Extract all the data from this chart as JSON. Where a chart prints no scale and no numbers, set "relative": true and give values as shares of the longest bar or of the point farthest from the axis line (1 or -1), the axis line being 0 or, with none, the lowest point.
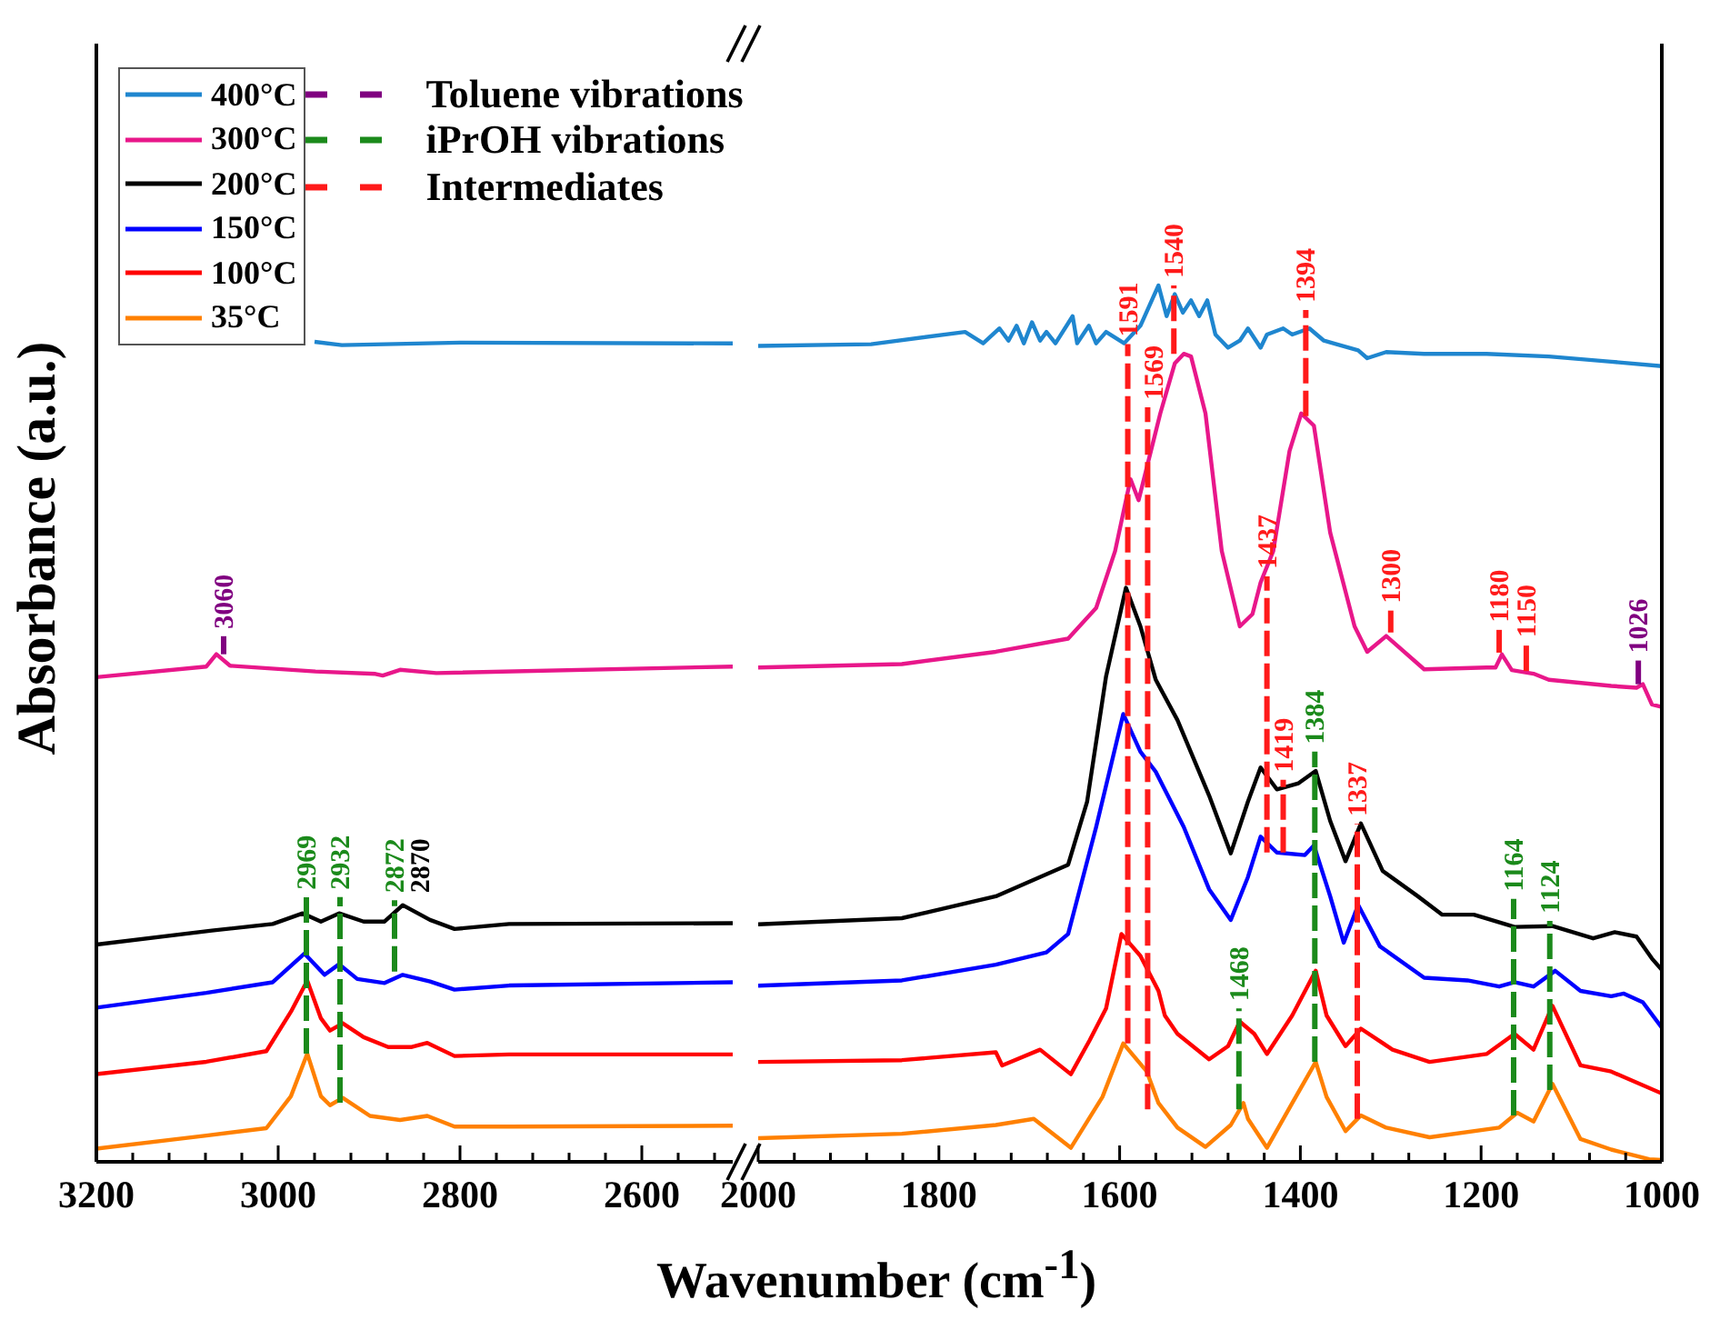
{
  "chart_data": [
    {
      "type": "line",
      "relative": true,
      "xlabel": "Wavenumber (cm$^{-1}$)",
      "ylabel": "Absorbance (a.u.)",
      "legend": "top left",
      "xlim": [
        3200,
        2500
      ],
      "xticks": [
        3200,
        {
          "value": 3160,
          "label": null
        },
        {
          "value": 3120,
          "label": null
        },
        {
          "value": 3080,
          "label": null
        },
        {
          "value": 3040,
          "label": null
        },
        3000,
        {
          "value": 2960,
          "label": null
        },
        {
          "value": 2920,
          "label": null
        },
        {
          "value": 2880,
          "label": null
        },
        {
          "value": 2840,
          "label": null
        },
        2800,
        {
          "value": 2760,
          "label": null
        },
        {
          "value": 2720,
          "label": null
        },
        {
          "value": 2680,
          "label": null
        },
        {
          "value": 2640,
          "label": null
        },
        2600,
        {
          "value": 2560,
          "label": null
        },
        {
          "value": 2520,
          "label": null
        }
      ],
      "series": [
        {
          "name": "400°C",
          "color": "#1f86cf",
          "x": [
            2960,
            2930,
            2800,
            2500
          ],
          "values": [
            1.0,
            0.996,
            0.999,
            0.998
          ]
        },
        {
          "name": "300°C",
          "color": "#e8178a",
          "x": [
            3200,
            3079,
            3068,
            3053,
            2959,
            2893,
            2885,
            2866,
            2826,
            2500
          ],
          "values": [
            0.591,
            0.604,
            0.619,
            0.605,
            0.598,
            0.595,
            0.593,
            0.6,
            0.596,
            0.604
          ]
        },
        {
          "name": "200°C",
          "color": "#000000",
          "x": [
            3200,
            3073,
            3006,
            2973,
            2953,
            2933,
            2906,
            2883,
            2863,
            2833,
            2806,
            2746,
            2500
          ],
          "values": [
            0.265,
            0.282,
            0.29,
            0.303,
            0.293,
            0.303,
            0.293,
            0.293,
            0.313,
            0.295,
            0.284,
            0.29,
            0.291
          ]
        },
        {
          "name": "150°C",
          "color": "#0000ff",
          "x": [
            3200,
            3079,
            3006,
            2971,
            2949,
            2933,
            2913,
            2883,
            2863,
            2833,
            2806,
            2746,
            2500
          ],
          "values": [
            0.188,
            0.206,
            0.219,
            0.254,
            0.228,
            0.241,
            0.223,
            0.218,
            0.228,
            0.22,
            0.21,
            0.215,
            0.219
          ]
        },
        {
          "name": "100°C",
          "color": "#ff0000",
          "x": [
            3200,
            3079,
            3013,
            2986,
            2968,
            2953,
            2943,
            2929,
            2906,
            2879,
            2853,
            2836,
            2806,
            2746,
            2500
          ],
          "values": [
            0.107,
            0.122,
            0.135,
            0.183,
            0.221,
            0.175,
            0.16,
            0.169,
            0.152,
            0.14,
            0.14,
            0.145,
            0.129,
            0.131,
            0.131
          ]
        },
        {
          "name": "35°C",
          "color": "#ff8000",
          "x": [
            3200,
            3079,
            3013,
            2986,
            2968,
            2953,
            2943,
            2929,
            2899,
            2866,
            2836,
            2806,
            2746,
            2500
          ],
          "values": [
            0.016,
            0.032,
            0.041,
            0.08,
            0.132,
            0.08,
            0.069,
            0.078,
            0.056,
            0.051,
            0.056,
            0.043,
            0.043,
            0.044
          ]
        },
        {
          "name": "Toluene vibrations",
          "color": "#800080",
          "line_style": "dashed",
          "x": [
            3060,
            3060
          ],
          "values": [
            0.619,
            0.641
          ]
        },
        {
          "name": "iPrOH vibrations",
          "color": "#1b8a1b",
          "line_style": "dashed",
          "x": [
            2969,
            2969
          ],
          "values": [
            0.132,
            0.323
          ]
        },
        {
          "color": "#1b8a1b",
          "line_style": "dashed",
          "x": [
            2932,
            2932
          ],
          "values": [
            0.072,
            0.323
          ]
        },
        {
          "color": "#1b8a1b",
          "line_style": "dashed",
          "x": [
            2872,
            2872
          ],
          "values": [
            0.232,
            0.319
          ]
        }
      ],
      "annotations": [
        {
          "text": "3060",
          "x": 3060,
          "y": 0.641
        },
        {
          "text": "2969",
          "x": 2969,
          "y": 0.323
        },
        {
          "text": "2932",
          "x": 2932,
          "y": 0.323
        },
        {
          "text": "2872",
          "x": 2872,
          "y": 0.319
        },
        {
          "text": "2870",
          "x": 2870,
          "y": 0.319
        }
      ]
    },
    {
      "type": "line",
      "relative": true,
      "xlim": [
        2000,
        1000
      ],
      "xticks": [
        2000,
        {
          "value": 1960,
          "label": null
        },
        {
          "value": 1920,
          "label": null
        },
        {
          "value": 1880,
          "label": null
        },
        {
          "value": 1840,
          "label": null
        },
        1800,
        {
          "value": 1760,
          "label": null
        },
        {
          "value": 1720,
          "label": null
        },
        {
          "value": 1680,
          "label": null
        },
        {
          "value": 1640,
          "label": null
        },
        1600,
        {
          "value": 1560,
          "label": null
        },
        {
          "value": 1520,
          "label": null
        },
        {
          "value": 1480,
          "label": null
        },
        {
          "value": 1440,
          "label": null
        },
        1400,
        {
          "value": 1360,
          "label": null
        },
        {
          "value": 1320,
          "label": null
        },
        {
          "value": 1280,
          "label": null
        },
        {
          "value": 1240,
          "label": null
        },
        1200,
        {
          "value": 1160,
          "label": null
        },
        {
          "value": 1120,
          "label": null
        },
        {
          "value": 1080,
          "label": null
        },
        {
          "value": 1040,
          "label": null
        },
        1000
      ],
      "series": [
        {
          "color": "#1f86cf",
          "x": [
            2000,
            1875,
            1771,
            1751,
            1733,
            1723,
            1714,
            1706,
            1697,
            1688,
            1681,
            1671,
            1652,
            1647,
            1634,
            1626,
            1615,
            1595,
            1577,
            1557,
            1548,
            1539,
            1530,
            1521,
            1512,
            1503,
            1494,
            1480,
            1467,
            1458,
            1444,
            1437,
            1419,
            1409,
            1390,
            1374,
            1360,
            1336,
            1326,
            1305,
            1263,
            1194,
            1125,
            1056,
            1000
          ],
          "values": [
            0.931,
            0.933,
            0.947,
            0.934,
            0.951,
            0.937,
            0.954,
            0.934,
            0.958,
            0.937,
            0.947,
            0.934,
            0.965,
            0.934,
            0.954,
            0.934,
            0.947,
            0.934,
            0.954,
            1.0,
            0.965,
            0.99,
            0.969,
            0.983,
            0.965,
            0.983,
            0.944,
            0.929,
            0.937,
            0.951,
            0.929,
            0.944,
            0.951,
            0.944,
            0.951,
            0.937,
            0.933,
            0.926,
            0.917,
            0.924,
            0.922,
            0.922,
            0.919,
            0.913,
            0.908
          ]
        },
        {
          "color": "#e8178a",
          "x": [
            2000,
            1841,
            1737,
            1657,
            1626,
            1605,
            1588,
            1579,
            1555,
            1539,
            1529,
            1521,
            1505,
            1487,
            1467,
            1453,
            1444,
            1430,
            1412,
            1399,
            1385,
            1367,
            1340,
            1326,
            1305,
            1263,
            1194,
            1184,
            1177,
            1166,
            1142,
            1125,
            1056,
            1028,
            1021,
            1011,
            1000
          ],
          "values": [
            0.564,
            0.568,
            0.582,
            0.597,
            0.632,
            0.697,
            0.779,
            0.755,
            0.854,
            0.911,
            0.922,
            0.919,
            0.854,
            0.697,
            0.611,
            0.625,
            0.661,
            0.697,
            0.811,
            0.854,
            0.84,
            0.718,
            0.611,
            0.582,
            0.6,
            0.562,
            0.564,
            0.564,
            0.579,
            0.561,
            0.557,
            0.55,
            0.543,
            0.541,
            0.545,
            0.522,
            0.519
          ]
        },
        {
          "color": "#000000",
          "x": [
            2000,
            1841,
            1737,
            1657,
            1636,
            1615,
            1593,
            1577,
            1560,
            1536,
            1501,
            1477,
            1458,
            1444,
            1426,
            1402,
            1383,
            1367,
            1350,
            1333,
            1309,
            1270,
            1243,
            1208,
            1163,
            1121,
            1076,
            1052,
            1028,
            1011,
            1000
          ],
          "values": [
            0.271,
            0.278,
            0.303,
            0.339,
            0.411,
            0.554,
            0.655,
            0.611,
            0.55,
            0.504,
            0.418,
            0.352,
            0.411,
            0.45,
            0.425,
            0.432,
            0.446,
            0.389,
            0.343,
            0.386,
            0.332,
            0.303,
            0.282,
            0.282,
            0.268,
            0.269,
            0.255,
            0.262,
            0.257,
            0.232,
            0.219
          ]
        },
        {
          "color": "#0000ff",
          "x": [
            2000,
            1841,
            1737,
            1681,
            1657,
            1626,
            1596,
            1577,
            1560,
            1529,
            1501,
            1477,
            1458,
            1444,
            1426,
            1395,
            1385,
            1367,
            1352,
            1336,
            1312,
            1263,
            1215,
            1180,
            1163,
            1142,
            1118,
            1090,
            1056,
            1042,
            1021,
            1000
          ],
          "values": [
            0.201,
            0.207,
            0.225,
            0.239,
            0.26,
            0.382,
            0.511,
            0.468,
            0.445,
            0.382,
            0.311,
            0.276,
            0.325,
            0.371,
            0.353,
            0.35,
            0.361,
            0.303,
            0.25,
            0.293,
            0.246,
            0.21,
            0.207,
            0.2,
            0.205,
            0.2,
            0.218,
            0.195,
            0.189,
            0.192,
            0.182,
            0.153
          ]
        },
        {
          "color": "#ff0000",
          "x": [
            2000,
            1841,
            1737,
            1730,
            1688,
            1654,
            1633,
            1615,
            1598,
            1577,
            1557,
            1550,
            1536,
            1501,
            1480,
            1467,
            1451,
            1437,
            1409,
            1383,
            1371,
            1350,
            1333,
            1298,
            1257,
            1194,
            1163,
            1142,
            1121,
            1090,
            1056,
            1000
          ],
          "values": [
            0.114,
            0.116,
            0.125,
            0.11,
            0.128,
            0.1,
            0.139,
            0.175,
            0.26,
            0.235,
            0.195,
            0.167,
            0.146,
            0.117,
            0.132,
            0.16,
            0.146,
            0.123,
            0.167,
            0.218,
            0.167,
            0.132,
            0.152,
            0.128,
            0.114,
            0.123,
            0.146,
            0.128,
            0.178,
            0.11,
            0.103,
            0.078
          ]
        },
        {
          "color": "#ff8000",
          "x": [
            2000,
            1841,
            1737,
            1695,
            1654,
            1619,
            1596,
            1570,
            1557,
            1536,
            1505,
            1477,
            1463,
            1458,
            1437,
            1409,
            1383,
            1371,
            1350,
            1333,
            1305,
            1257,
            1180,
            1160,
            1142,
            1121,
            1090,
            1056,
            1014,
            1000
          ],
          "values": [
            0.027,
            0.032,
            0.042,
            0.049,
            0.016,
            0.074,
            0.135,
            0.103,
            0.067,
            0.039,
            0.017,
            0.042,
            0.067,
            0.049,
            0.016,
            0.067,
            0.114,
            0.074,
            0.035,
            0.053,
            0.039,
            0.028,
            0.039,
            0.056,
            0.046,
            0.089,
            0.026,
            0.014,
            0.003,
            0.002
          ]
        },
        {
          "name": "Intermediates",
          "color": "#ff1a1a",
          "line_style": "dashed",
          "x": [
            1591,
            1591
          ],
          "values": [
            0.135,
            0.933
          ]
        },
        {
          "color": "#ff1a1a",
          "line_style": "dashed",
          "x": [
            1569,
            1569
          ],
          "values": [
            0.06,
            0.861
          ]
        },
        {
          "color": "#ff1a1a",
          "line_style": "dashed",
          "x": [
            1540,
            1540
          ],
          "values": [
            0.922,
            1.0
          ]
        },
        {
          "color": "#ff1a1a",
          "line_style": "dashed",
          "x": [
            1437,
            1437
          ],
          "values": [
            0.353,
            0.668
          ]
        },
        {
          "color": "#ff1a1a",
          "line_style": "dashed",
          "x": [
            1419,
            1419
          ],
          "values": [
            0.353,
            0.436
          ]
        },
        {
          "color": "#ff1a1a",
          "line_style": "dashed",
          "x": [
            1394,
            1394
          ],
          "values": [
            0.851,
            0.972
          ]
        },
        {
          "color": "#ff1a1a",
          "line_style": "dashed",
          "x": [
            1337,
            1337
          ],
          "values": [
            0.049,
            0.386
          ]
        },
        {
          "color": "#ff1a1a",
          "line_style": "dashed",
          "x": [
            1300,
            1300
          ],
          "values": [
            0.604,
            0.629
          ]
        },
        {
          "color": "#ff1a1a",
          "line_style": "dashed",
          "x": [
            1180,
            1180
          ],
          "values": [
            0.581,
            0.607
          ]
        },
        {
          "color": "#ff1a1a",
          "line_style": "dashed",
          "x": [
            1150,
            1150
          ],
          "values": [
            0.56,
            0.59
          ]
        },
        {
          "color": "#1b8a1b",
          "line_style": "dashed",
          "x": [
            1468,
            1468
          ],
          "values": [
            0.06,
            0.175
          ]
        },
        {
          "color": "#1b8a1b",
          "line_style": "dashed",
          "x": [
            1384,
            1384
          ],
          "values": [
            0.114,
            0.468
          ]
        },
        {
          "color": "#1b8a1b",
          "line_style": "dashed",
          "x": [
            1164,
            1164
          ],
          "values": [
            0.053,
            0.3
          ]
        },
        {
          "color": "#1b8a1b",
          "line_style": "dashed",
          "x": [
            1124,
            1124
          ],
          "values": [
            0.082,
            0.275
          ]
        },
        {
          "color": "#800080",
          "line_style": "dashed",
          "x": [
            1026,
            1026
          ],
          "values": [
            0.545,
            0.572
          ]
        }
      ],
      "annotations": [
        {
          "text": "1591",
          "x": 1591,
          "y": 0.933
        },
        {
          "text": "1569",
          "x": 1569,
          "y": 0.861
        },
        {
          "text": "1540",
          "x": 1540,
          "y": 1.0
        },
        {
          "text": "1437",
          "x": 1437,
          "y": 0.668
        },
        {
          "text": "1419",
          "x": 1419,
          "y": 0.436
        },
        {
          "text": "1394",
          "x": 1394,
          "y": 0.972
        },
        {
          "text": "1337",
          "x": 1337,
          "y": 0.386
        },
        {
          "text": "1300",
          "x": 1300,
          "y": 0.629
        },
        {
          "text": "1180",
          "x": 1180,
          "y": 0.607
        },
        {
          "text": "1150",
          "x": 1150,
          "y": 0.59
        },
        {
          "text": "1026",
          "x": 1026,
          "y": 0.572
        },
        {
          "text": "1468",
          "x": 1468,
          "y": 0.175
        },
        {
          "text": "1384",
          "x": 1384,
          "y": 0.468
        },
        {
          "text": "1164",
          "x": 1164,
          "y": 0.3
        },
        {
          "text": "1124",
          "x": 1124,
          "y": 0.275
        }
      ]
    }
  ]
}
